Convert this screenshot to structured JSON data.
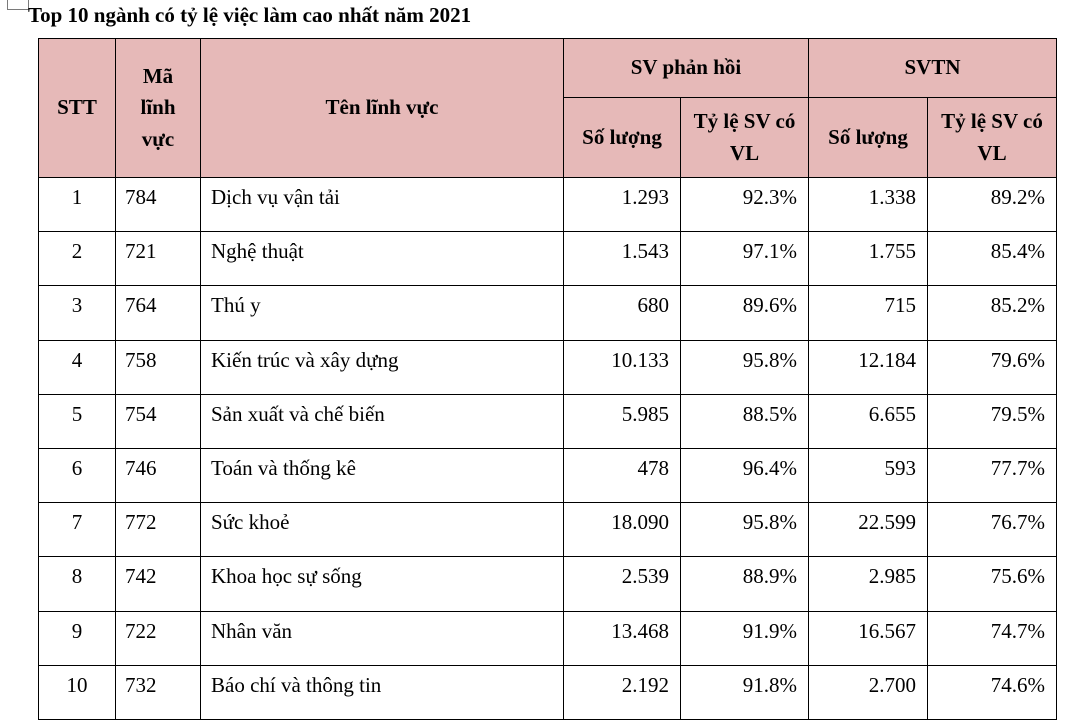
{
  "page": {
    "title": "Top 10 ngành có tỷ lệ việc làm cao nhất năm 2021"
  },
  "colors": {
    "header_bg": "#e6b9b8",
    "border": "#000000",
    "text": "#000000"
  },
  "table": {
    "header": {
      "stt": "STT",
      "ma_linh_vuc": "Mã lĩnh vực",
      "ten_linh_vuc": "Tên lĩnh vực",
      "sv_phan_hoi": "SV phản hồi",
      "svtn": "SVTN",
      "so_luong": "Số lượng",
      "ty_le_sv_co_vl": "Tỷ lệ SV có VL"
    },
    "rows": [
      {
        "stt": "1",
        "code": "784",
        "name": "Dịch vụ vận tải",
        "ph_count": "1.293",
        "ph_rate": "92.3%",
        "tn_count": "1.338",
        "tn_rate": "89.2%"
      },
      {
        "stt": "2",
        "code": "721",
        "name": "Nghệ thuật",
        "ph_count": "1.543",
        "ph_rate": "97.1%",
        "tn_count": "1.755",
        "tn_rate": "85.4%"
      },
      {
        "stt": "3",
        "code": "764",
        "name": "Thú y",
        "ph_count": "680",
        "ph_rate": "89.6%",
        "tn_count": "715",
        "tn_rate": "85.2%"
      },
      {
        "stt": "4",
        "code": "758",
        "name": "Kiến trúc và xây dựng",
        "ph_count": "10.133",
        "ph_rate": "95.8%",
        "tn_count": "12.184",
        "tn_rate": "79.6%"
      },
      {
        "stt": "5",
        "code": "754",
        "name": "Sản xuất và chế biến",
        "ph_count": "5.985",
        "ph_rate": "88.5%",
        "tn_count": "6.655",
        "tn_rate": "79.5%"
      },
      {
        "stt": "6",
        "code": "746",
        "name": "Toán và thống kê",
        "ph_count": "478",
        "ph_rate": "96.4%",
        "tn_count": "593",
        "tn_rate": "77.7%"
      },
      {
        "stt": "7",
        "code": "772",
        "name": "Sức khoẻ",
        "ph_count": "18.090",
        "ph_rate": "95.8%",
        "tn_count": "22.599",
        "tn_rate": "76.7%"
      },
      {
        "stt": "8",
        "code": "742",
        "name": "Khoa học sự sống",
        "ph_count": "2.539",
        "ph_rate": "88.9%",
        "tn_count": "2.985",
        "tn_rate": "75.6%"
      },
      {
        "stt": "9",
        "code": "722",
        "name": "Nhân văn",
        "ph_count": "13.468",
        "ph_rate": "91.9%",
        "tn_count": "16.567",
        "tn_rate": "74.7%"
      },
      {
        "stt": "10",
        "code": "732",
        "name": "Báo chí và thông tin",
        "ph_count": "2.192",
        "ph_rate": "91.8%",
        "tn_count": "2.700",
        "tn_rate": "74.6%"
      }
    ]
  }
}
